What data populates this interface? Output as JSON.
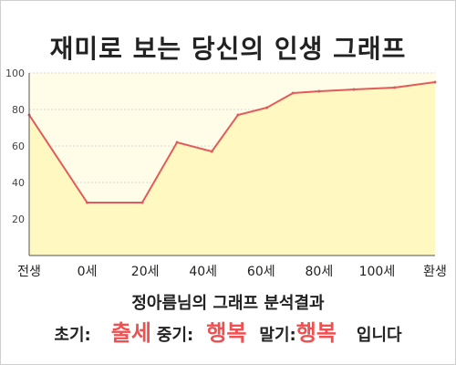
{
  "title": "재미로 보는 당신의 인생 그래프",
  "caption": "정아름님의 그래프 분석결과",
  "result": {
    "early_label": "초기:",
    "early_value": "출세",
    "middle_label": "중기:",
    "middle_value": "행복",
    "late_label": "말기:",
    "late_value": "행복",
    "ending": "입니다"
  },
  "colors": {
    "line": "#e25b5b",
    "fill": "#fff8c0",
    "highlight": "#f05050"
  },
  "chart_data": {
    "type": "area",
    "title": "",
    "xlabel": "",
    "ylabel": "",
    "categories": [
      "전생",
      "0세",
      "20세",
      "40세",
      "60세",
      "80세",
      "100세",
      "환생"
    ],
    "yticks": [
      20,
      40,
      60,
      80,
      100
    ],
    "ylim": [
      0,
      100
    ],
    "grid": true,
    "legend": "none",
    "series": [
      {
        "x": [
          0,
          1,
          1.95,
          2.55,
          3.15,
          3.6,
          4.1,
          4.55,
          5.0,
          5.6,
          6.3,
          7.0
        ],
        "values": [
          77,
          29,
          29,
          62,
          57,
          77,
          81,
          89,
          90,
          91,
          92,
          95
        ]
      }
    ]
  }
}
